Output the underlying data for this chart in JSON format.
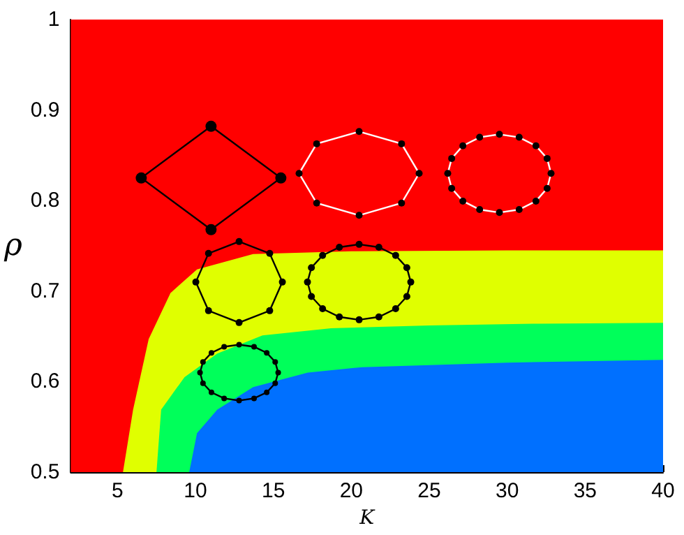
{
  "chart_data": {
    "type": "area",
    "xlabel": "K",
    "ylabel": "ρ",
    "xlim": [
      2,
      40
    ],
    "ylim": [
      0.5,
      1
    ],
    "xticks": [
      5,
      10,
      15,
      20,
      25,
      30,
      35,
      40
    ],
    "yticks": [
      0.5,
      0.6,
      0.7,
      0.8,
      0.9,
      1
    ],
    "grid": false,
    "marker": "none",
    "bands": [
      {
        "axis": "y",
        "from": 0.5,
        "to": 1,
        "color": "#ff0000"
      }
    ],
    "series": [
      {
        "color": "#e0ff00",
        "x": [
          5.35,
          6.0,
          7.0,
          8.4,
          10.1,
          13.7,
          20,
          30,
          40
        ],
        "values": [
          0.5,
          0.569,
          0.647,
          0.698,
          0.724,
          0.741,
          0.744,
          0.745,
          0.745
        ]
      },
      {
        "color": "#00ff5a",
        "x": [
          7.5,
          7.8,
          9.3,
          11.4,
          14.3,
          18.7,
          25,
          32,
          40
        ],
        "values": [
          0.5,
          0.569,
          0.605,
          0.631,
          0.651,
          0.659,
          0.662,
          0.664,
          0.665
        ]
      },
      {
        "color": "#0070ff",
        "x": [
          9.6,
          10.1,
          11.4,
          13.7,
          17.2,
          20.7,
          30,
          40
        ],
        "values": [
          0.5,
          0.543,
          0.569,
          0.594,
          0.61,
          0.616,
          0.621,
          0.624
        ]
      }
    ]
  }
}
